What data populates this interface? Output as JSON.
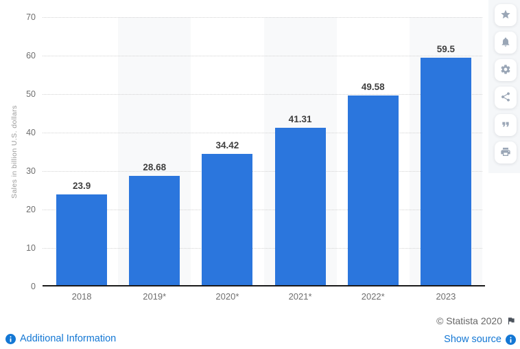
{
  "chart_data": {
    "type": "bar",
    "categories": [
      "2018",
      "2019*",
      "2020*",
      "2021*",
      "2022*",
      "2023"
    ],
    "values": [
      23.9,
      28.68,
      34.42,
      41.31,
      49.58,
      59.5
    ],
    "data_labels": [
      "23.9",
      "28.68",
      "34.42",
      "41.31",
      "49.58",
      "59.5"
    ],
    "title": "",
    "xlabel": "",
    "ylabel": "Sales in billion U.S. dollars",
    "ylim": [
      0,
      70
    ],
    "yticks": [
      0,
      10,
      20,
      30,
      40,
      50,
      60,
      70
    ],
    "grid": "horizontal-dotted",
    "legend": "none",
    "bar_color": "#2b76dd",
    "shaded_column_indexes": [
      1,
      3,
      5
    ]
  },
  "sidebar": {
    "buttons": [
      {
        "icon": "star-icon"
      },
      {
        "icon": "bell-icon"
      },
      {
        "icon": "gear-icon"
      },
      {
        "icon": "share-icon"
      },
      {
        "icon": "quote-icon"
      },
      {
        "icon": "print-icon"
      }
    ]
  },
  "footer": {
    "additional_information": "Additional Information",
    "copyright": "© Statista 2020",
    "show_source": "Show source"
  },
  "colors": {
    "bar": "#2b76dd",
    "link": "#1377d4",
    "value_label": "#3f3f3f",
    "axis_label": "#6e6e6e",
    "y_axis_title": "#9b9b9b",
    "gridline": "#d2d2d2",
    "baseline": "#191919",
    "sidebar_icon": "#9aa6b6",
    "sidebar_background": "#f5f7f9",
    "column_shade": "#f8f9fa"
  }
}
